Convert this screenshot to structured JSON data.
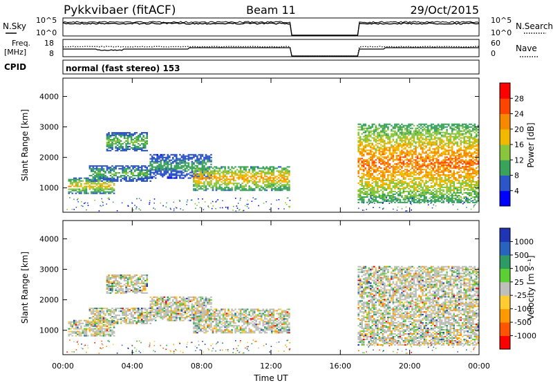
{
  "header": {
    "station": "Pykkvibaer (fitACF)",
    "beam": "Beam 11",
    "date": "29/Oct/2015"
  },
  "noise_panel": {
    "left_label": "N.Sky",
    "right_label": "N.Search",
    "left_ticks": [
      "10^5",
      "10^0"
    ],
    "right_ticks": [
      "10^5",
      "10^0"
    ]
  },
  "freq_panel": {
    "left_label_1": "Freq.",
    "left_label_2": "[MHz]",
    "left_ticks": [
      "18",
      "8"
    ],
    "right_label": "Nave",
    "right_ticks": [
      "60",
      "0"
    ]
  },
  "cpid": {
    "label": "CPID",
    "value": "normal (fast stereo) 153"
  },
  "colors": {
    "power_scale": [
      "#0000ff",
      "#2c55c8",
      "#3aa35b",
      "#89c63b",
      "#f2b800",
      "#f58a00",
      "#ff4400",
      "#ff0000"
    ],
    "velocity_scale": [
      "#ff0000",
      "#ff5500",
      "#ff9900",
      "#ffcc33",
      "#bfbfbb",
      "#5ccf34",
      "#2e9a64",
      "#2a62c0",
      "#1f35b4"
    ],
    "ground_scatter": "#bebeb8"
  },
  "chart_data": [
    {
      "type": "heatmap",
      "name_key": "power",
      "ylabel": "Slant Range [km]",
      "y_ticks": [
        "1000",
        "2000",
        "3000",
        "4000"
      ],
      "ylim": [
        200,
        4600
      ],
      "xlim": [
        0,
        24
      ],
      "colorbar": {
        "label": "Power [dB]",
        "ticks": [
          "4",
          "8",
          "12",
          "16",
          "20",
          "24",
          "28"
        ],
        "range": [
          0,
          32
        ]
      },
      "data_gap_hours": [
        13.1,
        17.0
      ],
      "echo_bands": [
        {
          "t_start": 0.3,
          "t_end": 3.0,
          "range_km": [
            800,
            1300
          ],
          "peak_db": 22
        },
        {
          "t_start": 1.5,
          "t_end": 5.0,
          "range_km": [
            1200,
            1700
          ],
          "peak_db": 14
        },
        {
          "t_start": 2.5,
          "t_end": 4.8,
          "range_km": [
            2200,
            2800
          ],
          "peak_db": 16
        },
        {
          "t_start": 5.0,
          "t_end": 8.5,
          "range_km": [
            1300,
            2100
          ],
          "peak_db": 12
        },
        {
          "t_start": 7.5,
          "t_end": 13.0,
          "range_km": [
            900,
            1700
          ],
          "peak_db": 24
        },
        {
          "t_start": 17.0,
          "t_end": 24.0,
          "range_km": [
            500,
            3100
          ],
          "peak_db": 28
        }
      ]
    },
    {
      "type": "heatmap",
      "name_key": "velocity",
      "ylabel": "Slant Range [km]",
      "xlabel": "Time UT",
      "x_ticks": [
        "00:00",
        "04:00",
        "08:00",
        "12:00",
        "16:00",
        "20:00",
        "00:00"
      ],
      "x_tick_hours": [
        0,
        4,
        8,
        12,
        16,
        20,
        24
      ],
      "y_ticks": [
        "1000",
        "2000",
        "3000",
        "4000"
      ],
      "ylim": [
        200,
        4600
      ],
      "xlim": [
        0,
        24
      ],
      "colorbar": {
        "label": "Velocity [m s⁻¹]",
        "ticks": [
          "1000",
          "500",
          "100",
          "25",
          "-25",
          "-100",
          "-500",
          "-1000"
        ]
      },
      "data_gap_hours": [
        13.1,
        17.0
      ]
    }
  ]
}
